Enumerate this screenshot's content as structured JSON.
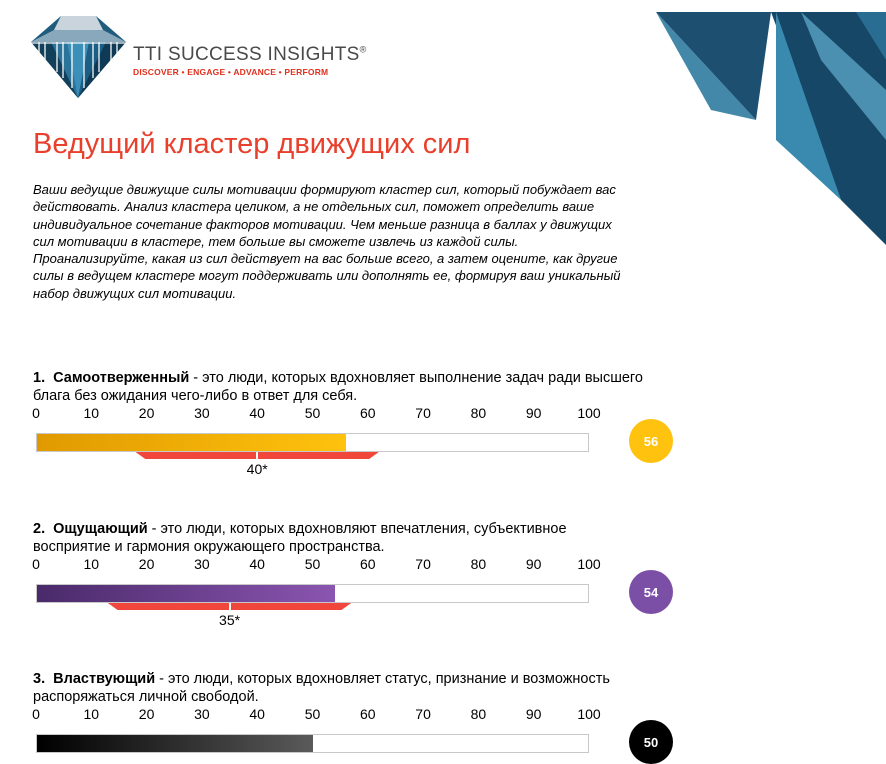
{
  "brand": {
    "name": "TTI SUCCESS INSIGHTS",
    "registered": "®",
    "tagline": "DISCOVER • ENGAGE • ADVANCE • PERFORM"
  },
  "page_title": "Ведущий кластер движущих сил",
  "intro": "Ваши ведущие движущие силы мотивации формируют кластер сил, который побуждает вас действовать.  Анализ кластера целиком, а не отдельных сил, поможет определить ваше индивидуальное сочетание факторов мотивации. Чем меньше разница в баллах у движущих сил мотивации в кластере, тем больше вы сможете извлечь из каждой силы.  Проанализируйте, какая из сил действует на вас больше всего, а затем оцените, как другие силы в ведущем кластере могут поддерживать или дополнять ее, формируя ваш уникальный набор движущих сил мотивации.",
  "scale_ticks": [
    "0",
    "10",
    "20",
    "30",
    "40",
    "50",
    "60",
    "70",
    "80",
    "90",
    "100"
  ],
  "drivers": [
    {
      "number": "1.",
      "name": "Самоотверженный",
      "description": " - это люди, которых вдохновляет выполнение задач ради высшего блага без ожидания чего-либо в ответ для себя.",
      "score": 56,
      "score_label": "56",
      "norm_mean": 40,
      "norm_range": [
        18,
        62
      ],
      "norm_label": "40*",
      "bar_gradient": [
        "#e09a00",
        "#ffc20e"
      ],
      "badge_color": "#ffc20e"
    },
    {
      "number": "2.",
      "name": "Ощущающий",
      "description": " - это люди, которых вдохновляют впечатления, субъективное восприятие и гармония окружающего пространства.",
      "score": 54,
      "score_label": "54",
      "norm_mean": 35,
      "norm_range": [
        13,
        57
      ],
      "norm_label": "35*",
      "bar_gradient": [
        "#4a2a6a",
        "#8a55b0"
      ],
      "badge_color": "#7b4fa6"
    },
    {
      "number": "3.",
      "name": "Властвующий",
      "description": " - это люди, которых вдохновляет статус, признание и возможность распоряжаться личной свободой.",
      "score": 50,
      "score_label": "50",
      "norm_mean": null,
      "norm_range": null,
      "norm_label": "",
      "bar_gradient": [
        "#000000",
        "#5a5a5a"
      ],
      "badge_color": "#000000"
    }
  ]
}
